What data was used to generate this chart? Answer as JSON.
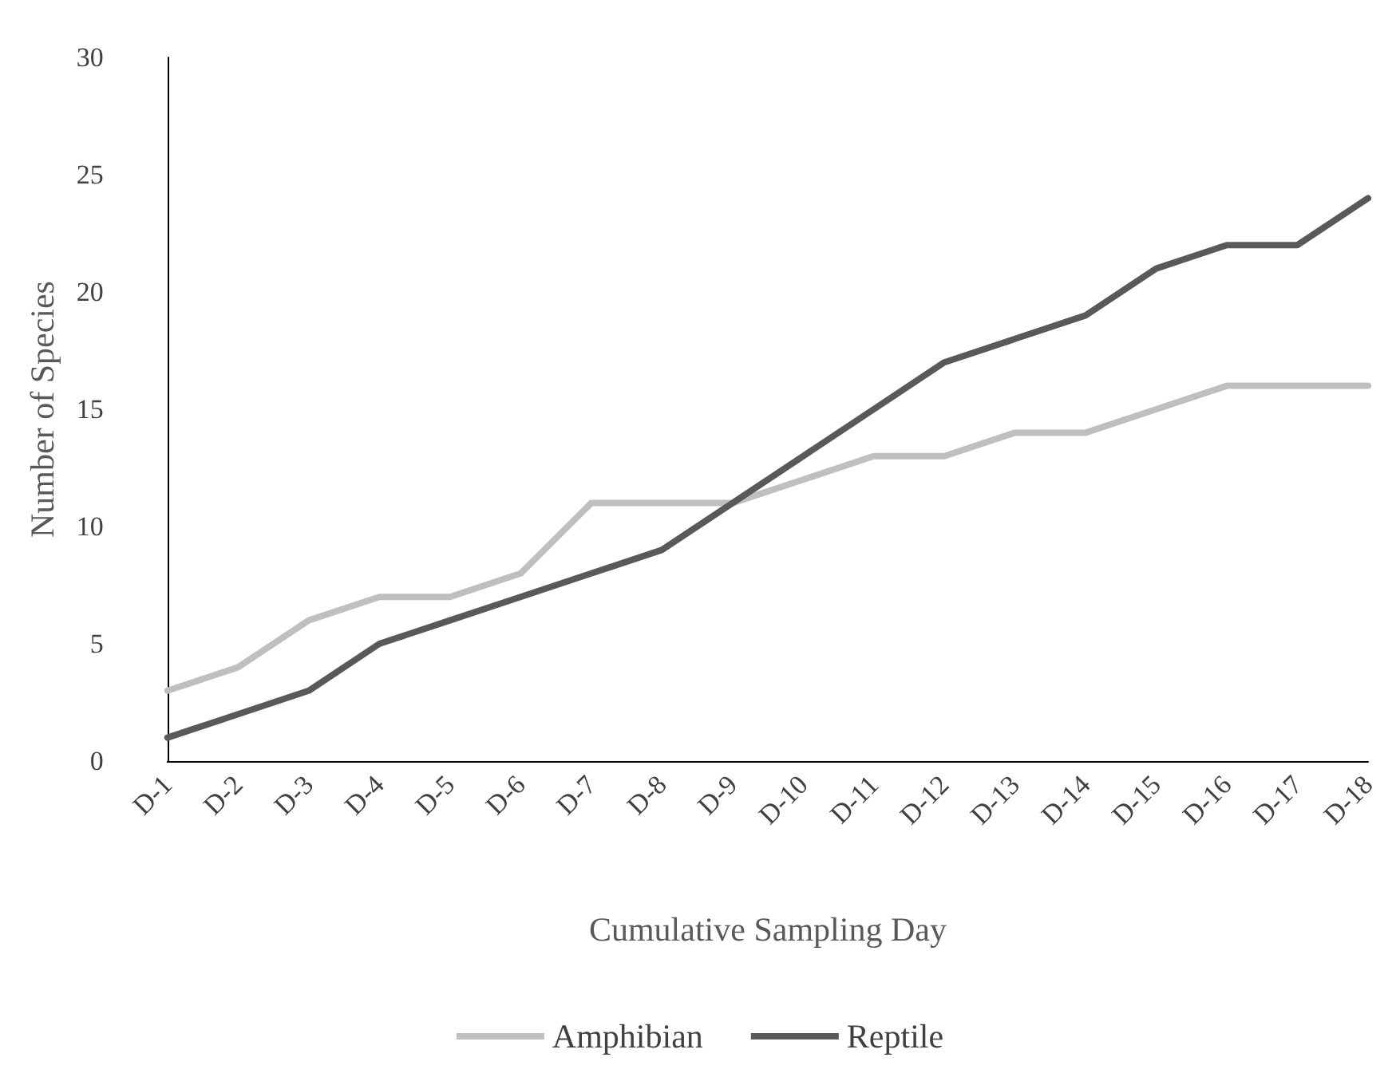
{
  "chart_data": {
    "type": "line",
    "xlabel": "Cumulative Sampling Day",
    "ylabel": "Number of Species",
    "categories": [
      "D-1",
      "D-2",
      "D-3",
      "D-4",
      "D-5",
      "D-6",
      "D-7",
      "D-8",
      "D-9",
      "D-10",
      "D-11",
      "D-12",
      "D-13",
      "D-14",
      "D-15",
      "D-16",
      "D-17",
      "D-18"
    ],
    "series": [
      {
        "name": "Amphibian",
        "color": "#bfbfbf",
        "values": [
          3,
          4,
          6,
          7,
          7,
          8,
          11,
          11,
          11,
          12,
          13,
          13,
          14,
          14,
          15,
          16,
          16,
          16
        ]
      },
      {
        "name": "Reptile",
        "color": "#595959",
        "values": [
          1,
          2,
          3,
          5,
          6,
          7,
          8,
          9,
          11,
          13,
          15,
          17,
          18,
          19,
          21,
          22,
          22,
          24
        ]
      }
    ],
    "ylim": [
      0,
      30
    ],
    "yticks": [
      0,
      5,
      10,
      15,
      20,
      25,
      30
    ],
    "grid": false,
    "legend": "bottom",
    "marker": "none",
    "line_style": "solid"
  }
}
